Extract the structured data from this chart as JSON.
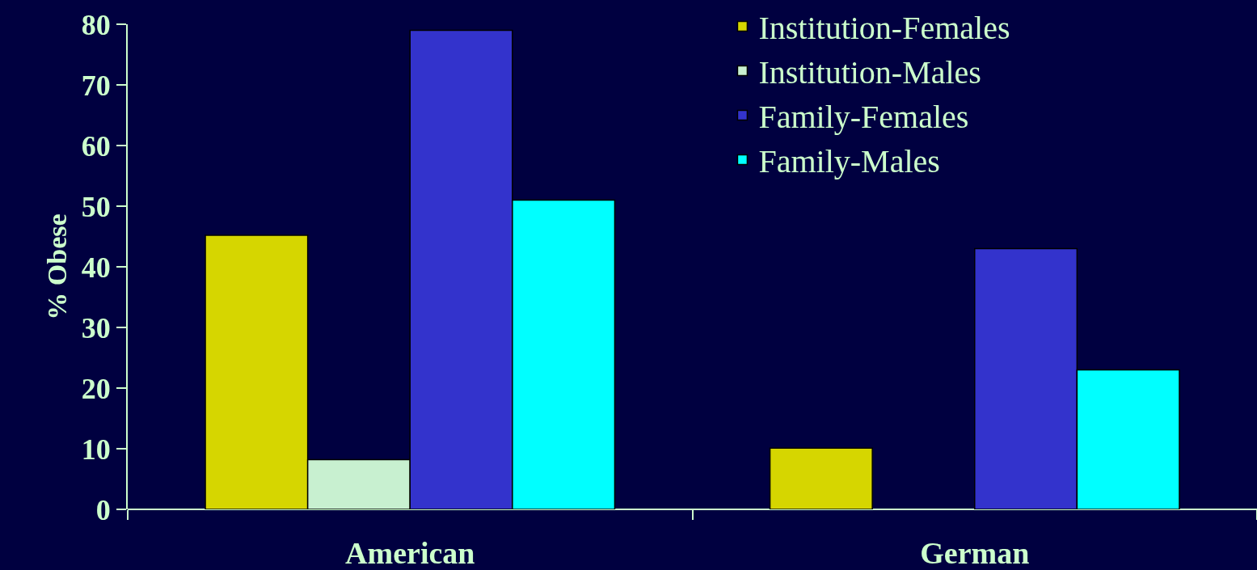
{
  "chart_data": {
    "type": "bar",
    "ylabel": "% Obese",
    "categories": [
      "American",
      "German"
    ],
    "series": [
      {
        "name": "Institution-Females",
        "color": "#d6d600",
        "values": [
          45.2,
          10.1
        ]
      },
      {
        "name": "Institution-Males",
        "color": "#c8f0d0",
        "values": [
          8.2,
          null
        ]
      },
      {
        "name": "Family-Females",
        "color": "#3333cc",
        "values": [
          79,
          43
        ]
      },
      {
        "name": "Family-Males",
        "color": "#00ffff",
        "values": [
          51,
          23
        ]
      }
    ],
    "ylim": [
      0,
      80
    ],
    "yticks": [
      0,
      10,
      20,
      30,
      40,
      50,
      60,
      70,
      80
    ],
    "grid": false,
    "legend": "top right"
  }
}
